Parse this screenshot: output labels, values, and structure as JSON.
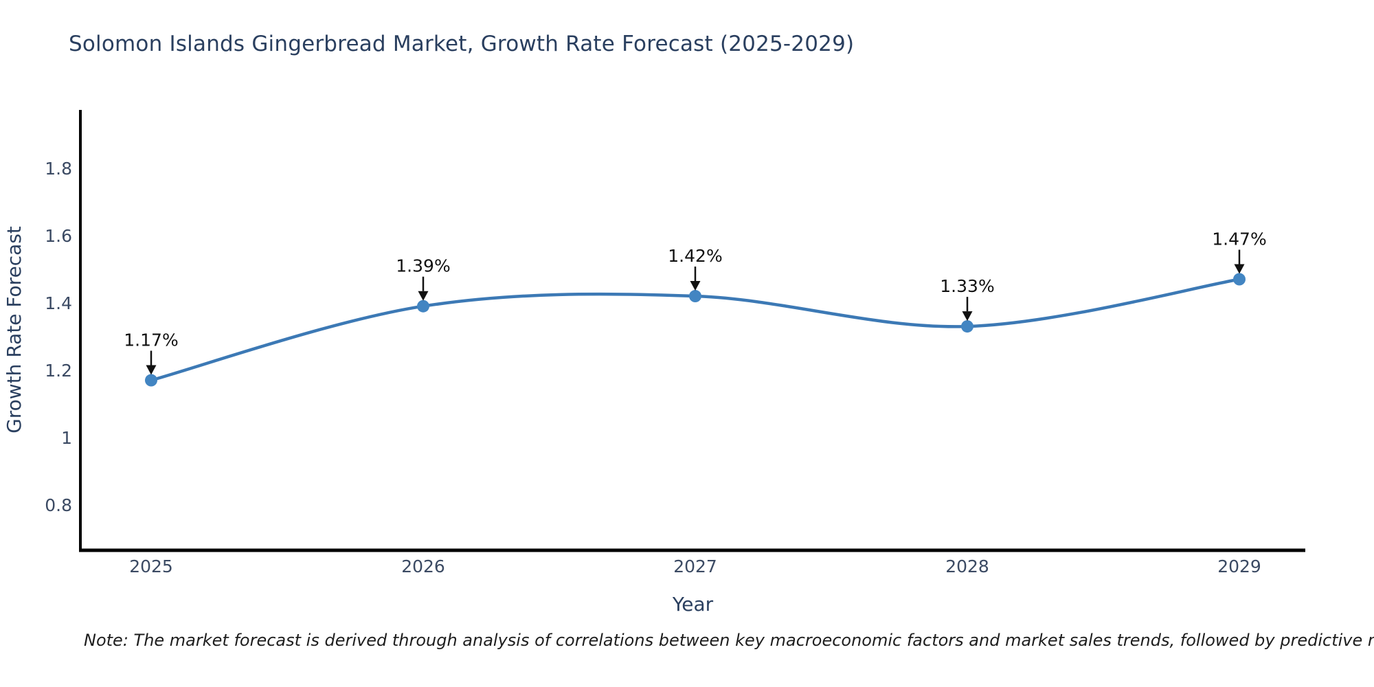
{
  "title": "Solomon Islands Gingerbread Market, Growth Rate Forecast (2025-2029)",
  "note": "Note: The market forecast is derived through analysis of correlations between key macroeconomic factors and market sales trends, followed by predictive modeling to project future sales",
  "chart_data": {
    "type": "line",
    "x": [
      2025,
      2026,
      2027,
      2028,
      2029
    ],
    "series": [
      {
        "name": "Growth Rate Forecast",
        "values": [
          1.17,
          1.39,
          1.42,
          1.33,
          1.47
        ],
        "point_labels": [
          "1.17%",
          "1.39%",
          "1.42%",
          "1.33%",
          "1.47%"
        ]
      }
    ],
    "title": "Solomon Islands Gingerbread Market, Growth Rate Forecast (2025-2029)",
    "xlabel": "Year",
    "ylabel": "Growth Rate Forecast",
    "x_tick_labels": [
      "2025",
      "2026",
      "2027",
      "2028",
      "2029"
    ],
    "y_tick_labels": [
      "0.8",
      "1",
      "1.2",
      "1.4",
      "1.6",
      "1.8"
    ],
    "y_ticks": [
      0.8,
      1.0,
      1.2,
      1.4,
      1.6,
      1.8
    ],
    "ylim": [
      0.665,
      1.973
    ],
    "grid": false,
    "legend": "none",
    "line_shape": "spline",
    "colors": {
      "line": "#3c79b5",
      "marker": "#4285c2",
      "axis_line": "#000000",
      "tick_text": "#3b4a63",
      "title_text": "#2a3f5f",
      "annotation": "#111111",
      "background": "#ffffff"
    }
  }
}
